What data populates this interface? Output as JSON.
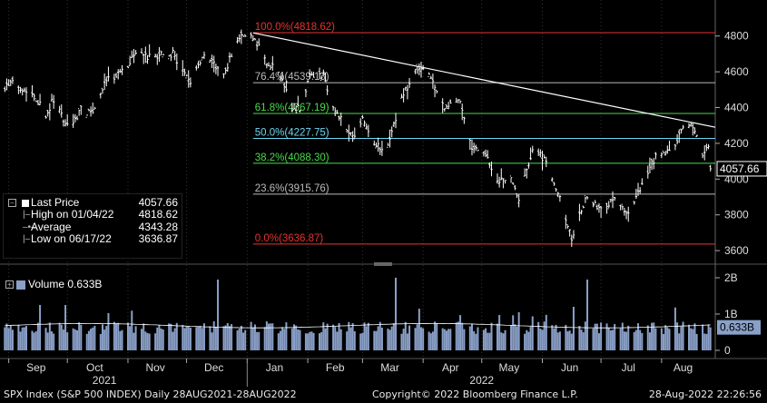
{
  "footer": {
    "left": "SPX Index (S&P 500 INDEX)  Daily 28AUG2021-28AUG2022",
    "center": "Copyright© 2022 Bloomberg Finance L.P.",
    "right": "28-Aug-2022 22:26:56"
  },
  "legend": {
    "last_price_label": "Last Price",
    "last_price_value": "4057.66",
    "high_label": "High on 01/04/22",
    "high_value": "4818.62",
    "average_label": "Average",
    "average_value": "4343.28",
    "low_label": "Low on 06/17/22",
    "low_value": "3636.87"
  },
  "volume_legend": {
    "label": "Volume 0.633B"
  },
  "colors": {
    "background": "#000000",
    "price_bars": "#ffffff",
    "volume_bars": "#8aa0c8",
    "fib_100": "#e8322f",
    "fib_764": "#bbbbbb",
    "fib_618": "#4cd94c",
    "fib_50": "#6bd6f0",
    "fib_382": "#4cd94c",
    "fib_236": "#bbbbbb",
    "fib_0": "#e8322f"
  },
  "chart_data": [
    {
      "type": "ohlc",
      "y_ticks": [
        "4800",
        "4600",
        "4400",
        "4200",
        "4000",
        "3800",
        "3600"
      ],
      "ylim": [
        3560,
        4900
      ],
      "x_months": [
        "Sep",
        "Oct",
        "Nov",
        "Dec",
        "Jan",
        "Feb",
        "Mar",
        "Apr",
        "May",
        "Jun",
        "Jul",
        "Aug"
      ],
      "x_years": [
        "2021",
        "2022"
      ],
      "last_price_label": "4057.66",
      "fibonacci": [
        {
          "label": "100.0%(4818.62)",
          "level": 4818.62
        },
        {
          "label": "76.4%(4539.13)",
          "level": 4539.13
        },
        {
          "label": "61.8%(4367.19)",
          "level": 4367.19
        },
        {
          "label": "50.0%(4227.75)",
          "level": 4227.75
        },
        {
          "label": "38.2%(4088.30)",
          "level": 4088.3
        },
        {
          "label": "23.6%(3915.76)",
          "level": 3915.76
        },
        {
          "label": "0.0%(3636.87)",
          "level": 3636.87
        }
      ],
      "trendline": {
        "from": 4818,
        "to": 4290
      },
      "price_path": [
        [
          "2021-08-30",
          4520
        ],
        [
          "2021-09-03",
          4535
        ],
        [
          "2021-09-08",
          4510
        ],
        [
          "2021-09-14",
          4470
        ],
        [
          "2021-09-20",
          4360
        ],
        [
          "2021-09-24",
          4450
        ],
        [
          "2021-09-30",
          4300
        ],
        [
          "2021-10-04",
          4310
        ],
        [
          "2021-10-08",
          4400
        ],
        [
          "2021-10-13",
          4360
        ],
        [
          "2021-10-21",
          4550
        ],
        [
          "2021-10-29",
          4600
        ],
        [
          "2021-11-05",
          4700
        ],
        [
          "2021-11-12",
          4680
        ],
        [
          "2021-11-18",
          4700
        ],
        [
          "2021-11-24",
          4700
        ],
        [
          "2021-11-30",
          4580
        ],
        [
          "2021-12-03",
          4540
        ],
        [
          "2021-12-10",
          4710
        ],
        [
          "2021-12-17",
          4620
        ],
        [
          "2021-12-20",
          4570
        ],
        [
          "2021-12-27",
          4790
        ],
        [
          "2022-01-04",
          4795
        ],
        [
          "2022-01-10",
          4670
        ],
        [
          "2022-01-18",
          4580
        ],
        [
          "2022-01-24",
          4380
        ],
        [
          "2022-01-28",
          4400
        ],
        [
          "2022-02-02",
          4580
        ],
        [
          "2022-02-09",
          4580
        ],
        [
          "2022-02-14",
          4400
        ],
        [
          "2022-02-18",
          4340
        ],
        [
          "2022-02-24",
          4240
        ],
        [
          "2022-03-01",
          4330
        ],
        [
          "2022-03-08",
          4180
        ],
        [
          "2022-03-14",
          4180
        ],
        [
          "2022-03-21",
          4450
        ],
        [
          "2022-03-29",
          4620
        ],
        [
          "2022-04-04",
          4580
        ],
        [
          "2022-04-12",
          4400
        ],
        [
          "2022-04-20",
          4440
        ],
        [
          "2022-04-26",
          4170
        ],
        [
          "2022-05-02",
          4150
        ],
        [
          "2022-05-09",
          3990
        ],
        [
          "2022-05-16",
          4000
        ],
        [
          "2022-05-20",
          3900
        ],
        [
          "2022-05-27",
          4160
        ],
        [
          "2022-06-03",
          4110
        ],
        [
          "2022-06-10",
          3900
        ],
        [
          "2022-06-16",
          3670
        ],
        [
          "2022-06-24",
          3910
        ],
        [
          "2022-07-01",
          3820
        ],
        [
          "2022-07-08",
          3900
        ],
        [
          "2022-07-14",
          3790
        ],
        [
          "2022-07-22",
          3960
        ],
        [
          "2022-07-29",
          4130
        ],
        [
          "2022-08-05",
          4150
        ],
        [
          "2022-08-12",
          4280
        ],
        [
          "2022-08-16",
          4305
        ],
        [
          "2022-08-19",
          4230
        ],
        [
          "2022-08-22",
          4140
        ],
        [
          "2022-08-25",
          4200
        ],
        [
          "2022-08-26",
          4057.66
        ]
      ],
      "ylabel": "",
      "xlabel": ""
    },
    {
      "type": "bar",
      "series_name": "Volume",
      "y_ticks": [
        "2B",
        "1B",
        "0"
      ],
      "ylim": [
        0,
        2.2
      ],
      "last_value_label": "0.633B",
      "average_level": 0.68,
      "typical_range": [
        0.45,
        0.8
      ],
      "spikes": [
        {
          "date": "2021-09-17",
          "value": 1.25
        },
        {
          "date": "2021-12-17",
          "value": 1.95
        },
        {
          "date": "2022-03-18",
          "value": 2.0
        },
        {
          "date": "2022-06-24",
          "value": 1.95
        },
        {
          "date": "2022-06-17",
          "value": 1.2
        },
        {
          "date": "2022-05-20",
          "value": 1.05
        }
      ]
    }
  ]
}
